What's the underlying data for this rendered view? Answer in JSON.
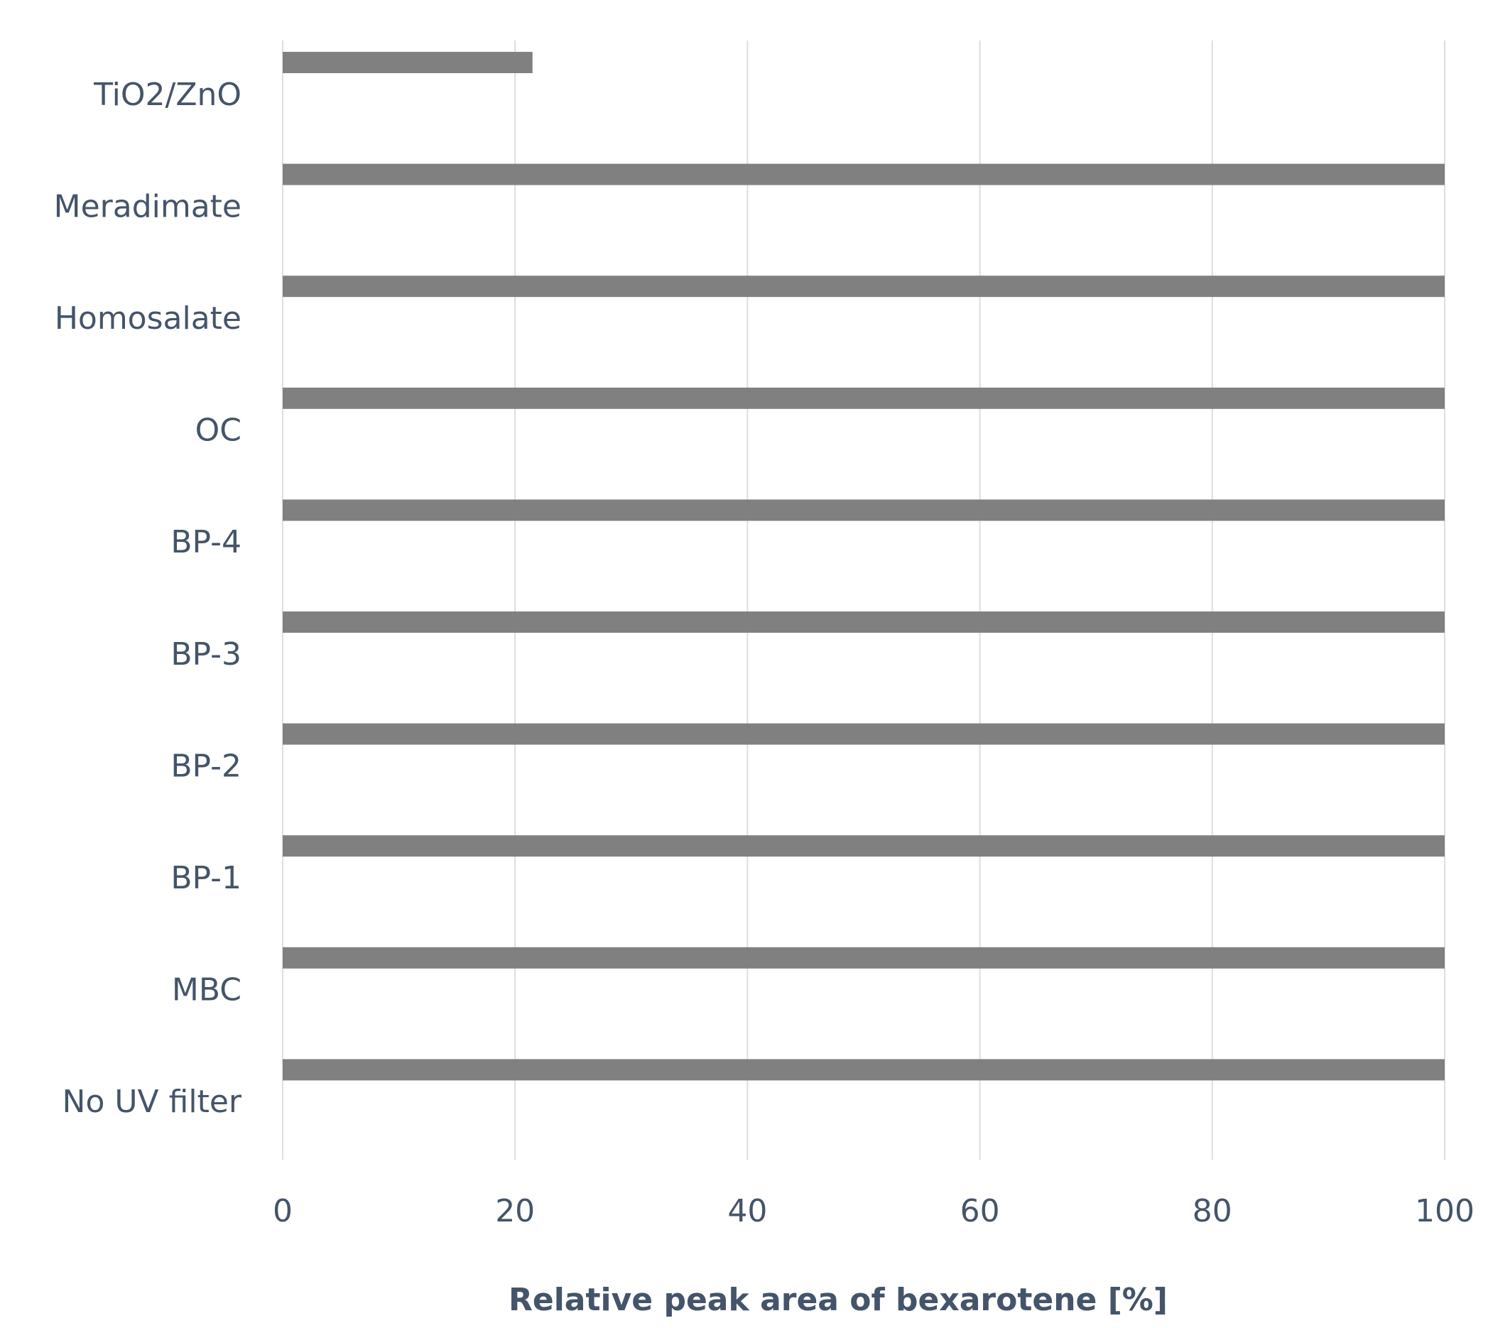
{
  "chart_data": {
    "type": "hbar",
    "categories": [
      "TiO2/ZnO",
      "Meradimate",
      "Homosalate",
      "OC",
      "BP-4",
      "BP-3",
      "BP-2",
      "BP-1",
      "MBC",
      "No UV filter"
    ],
    "values": [
      21.5,
      100,
      100,
      100,
      100,
      100,
      100,
      100,
      100,
      100
    ],
    "color": "#808080",
    "xlabel": "Relative peak area of bexarotene [%]",
    "xlim": [
      0,
      100
    ],
    "xticks": [
      0,
      20,
      40,
      60,
      80,
      100
    ],
    "grid": true
  }
}
